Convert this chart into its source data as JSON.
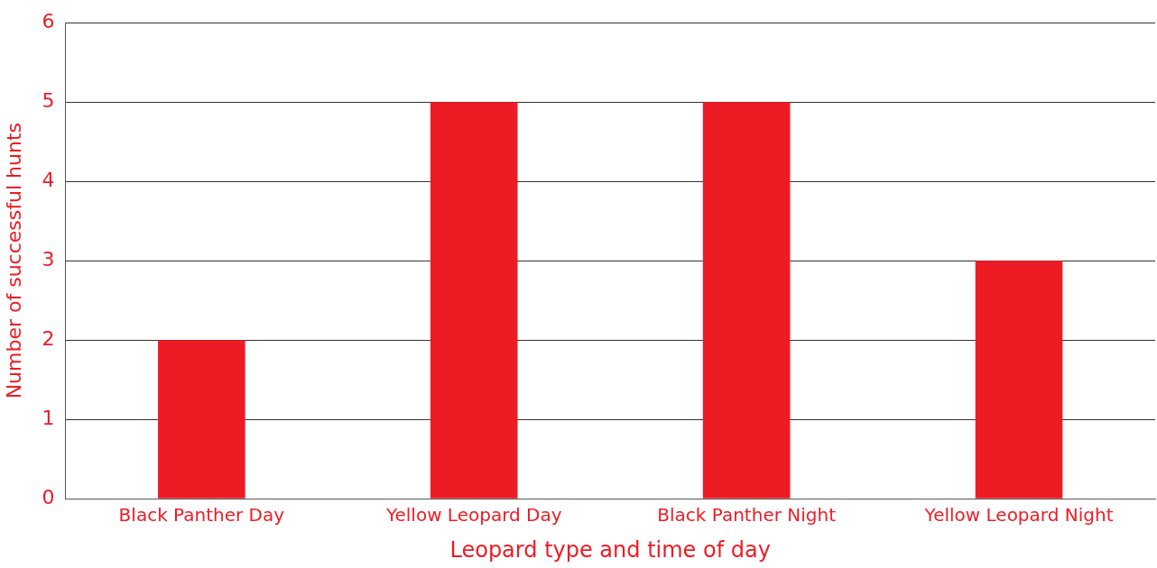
{
  "chart_data": {
    "type": "bar",
    "xlabel": "Leopard type and time of day",
    "ylabel": "Number of successful hunts",
    "categories": [
      "Black Panther Day",
      "Yellow Leopard Day",
      "Black Panther Night",
      "Yellow Leopard Night"
    ],
    "values": [
      2,
      5,
      5,
      3
    ],
    "color": "#ed1c24",
    "ylim": [
      0,
      6
    ],
    "yticks": [
      0,
      1,
      2,
      3,
      4,
      5,
      6
    ],
    "grid": "y",
    "legend": false
  }
}
